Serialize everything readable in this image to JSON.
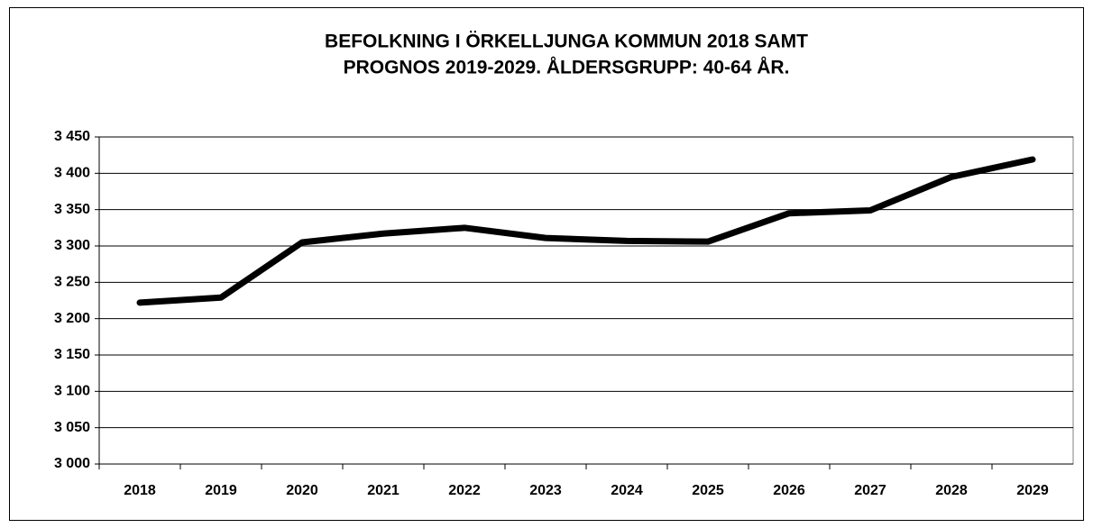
{
  "chart_data": {
    "type": "line",
    "title": [
      "BEFOLKNING I ÖRKELLJUNGA KOMMUN 2018 SAMT",
      "PROGNOS 2019-2029. ÅLDERSGRUPP: 40-64 ÅR."
    ],
    "categories": [
      "2018",
      "2019",
      "2020",
      "2021",
      "2022",
      "2023",
      "2024",
      "2025",
      "2026",
      "2027",
      "2028",
      "2029"
    ],
    "values": [
      3222,
      3229,
      3305,
      3317,
      3325,
      3311,
      3307,
      3306,
      3345,
      3349,
      3395,
      3419
    ],
    "color": "#000000",
    "ylim": [
      3000,
      3450
    ],
    "yticks": [
      {
        "value": 3000,
        "label": "3 000"
      },
      {
        "value": 3050,
        "label": "3 050"
      },
      {
        "value": 3100,
        "label": "3 100"
      },
      {
        "value": 3150,
        "label": "3 150"
      },
      {
        "value": 3200,
        "label": "3 200"
      },
      {
        "value": 3250,
        "label": "3 250"
      },
      {
        "value": 3300,
        "label": "3 300"
      },
      {
        "value": 3350,
        "label": "3 350"
      },
      {
        "value": 3400,
        "label": "3 400"
      },
      {
        "value": 3450,
        "label": "3 450"
      }
    ],
    "grid": true
  }
}
